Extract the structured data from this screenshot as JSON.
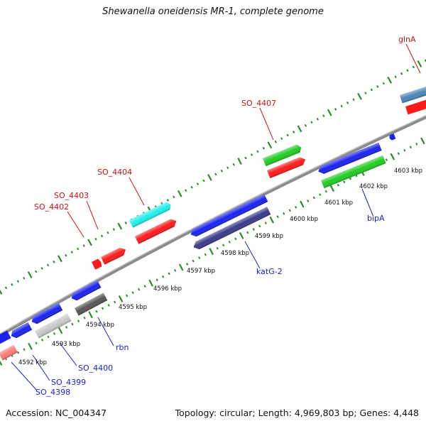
{
  "title": "Shewanella oneidensis MR-1, complete genome",
  "footer": {
    "accession": "Accession: NC_004347",
    "summary": "Topology: circular; Length: 4,969,803 bp; Genes: 4,448"
  },
  "colors": {
    "backbone": "#8c8c8c",
    "tick": "#2a8a2a",
    "top_labels": "#cc1111",
    "bottom_labels": "#1a22cc"
  },
  "kbp_labels": [
    "4592 kbp",
    "4593 kbp",
    "4594 kbp",
    "4595 kbp",
    "4596 kbp",
    "4597 kbp",
    "4598 kbp",
    "4599 kbp",
    "4600 kbp",
    "4601 kbp",
    "4602 kbp",
    "4603 kbp"
  ],
  "gene_labels": {
    "top": [
      "SO_4402",
      "SO_4403",
      "SO_4404",
      "SO_4407",
      "glnA"
    ],
    "bottom": [
      "SO_4398",
      "SO_4399",
      "SO_4400",
      "rbn",
      "katG-2",
      "bipA"
    ]
  },
  "gene_colors": [
    "#1a22ee",
    "#ff1a1a",
    "#22cc22",
    "#22eeee",
    "#555555",
    "#c8c8c8",
    "#3a3a8a",
    "#ff7a7a",
    "#4a86b8"
  ]
}
